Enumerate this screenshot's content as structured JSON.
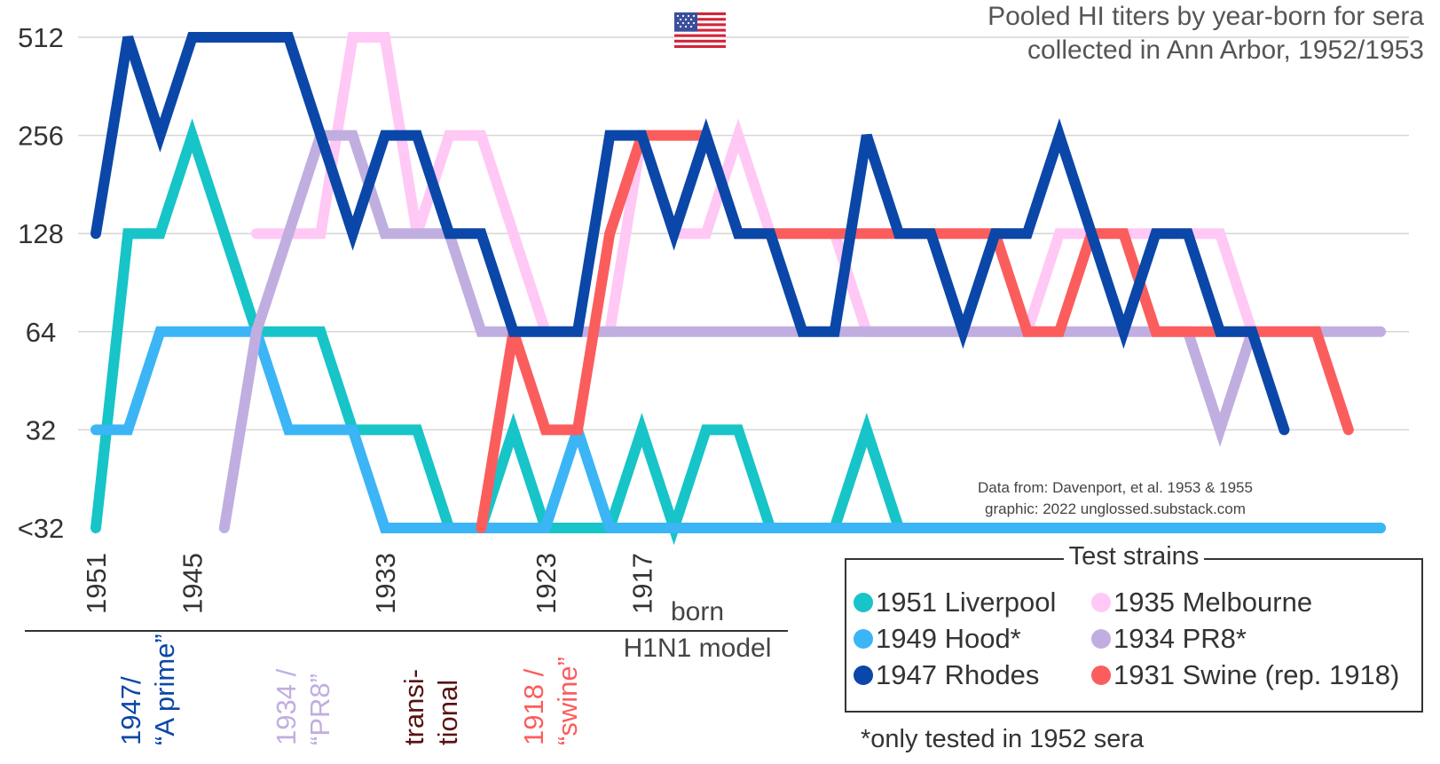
{
  "title_lines": [
    "Pooled HI titers by year-born for sera",
    "collected in Ann Arbor, 1952/1953"
  ],
  "flag": {
    "name": "us-flag-icon",
    "symbol": "🇺🇸"
  },
  "credit_lines": [
    "Data from: Davenport, et al. 1953 & 1955",
    "graphic: 2022 unglossed.substack.com"
  ],
  "legend": {
    "title": "Test strains",
    "items": [
      {
        "label": "1951 Liverpool",
        "color": "#17c4c8"
      },
      {
        "label": "1949 Hood*",
        "color": "#3bb5f5"
      },
      {
        "label": "1947 Rhodes",
        "color": "#0a47a8"
      },
      {
        "label": "1935 Melbourne",
        "color": "#ffc8f5"
      },
      {
        "label": "1934 PR8*",
        "color": "#c1aee0"
      },
      {
        "label": "1931 Swine (rep. 1918)",
        "color": "#fb5d5d"
      }
    ]
  },
  "note": "*only tested in 1952 sera",
  "born_label": "born",
  "model_label": "H1N1 model",
  "model_groups": [
    {
      "lines": [
        "1947/",
        "“A prime”"
      ],
      "color": "#0a47a8"
    },
    {
      "lines": [
        "1934 /",
        "“PR8”"
      ],
      "color": "#c1aee0"
    },
    {
      "lines": [
        "transi-",
        "tional"
      ],
      "color": "#5a1212"
    },
    {
      "lines": [
        "1918 /",
        "“swine”"
      ],
      "color": "#fb5d5d"
    }
  ],
  "chart_data": {
    "type": "line",
    "title": "Pooled HI titers by year-born for sera collected in Ann Arbor, 1952/1953",
    "xlabel": "born",
    "ylabel": "",
    "x_ticks": [
      "1951",
      "1945",
      "1933",
      "1923",
      "1917"
    ],
    "x_years": [
      1951,
      1949,
      1947,
      1945,
      1943,
      1941,
      1939,
      1937,
      1935,
      1933,
      1931,
      1929,
      1927,
      1925,
      1923,
      1921,
      1919,
      1917,
      1915,
      1913,
      1911,
      1909,
      1907,
      1905,
      1903,
      1901,
      1899,
      1897,
      1895,
      1893,
      1891,
      1889,
      1887,
      1885,
      1883,
      1881,
      1879,
      1877,
      1875,
      1873,
      1871
    ],
    "y_ticks": [
      "<32",
      "32",
      "64",
      "128",
      "256",
      "512"
    ],
    "y_note": "y values are log2 steps: 0 = <32, 1 = 32, 2 = 64, 3 = 128, 4 = 256, 5 = 512",
    "series": [
      {
        "name": "1951 Liverpool",
        "values": [
          0,
          3,
          3,
          4,
          3,
          2,
          2,
          2,
          1,
          1,
          1,
          0,
          0,
          1,
          0,
          0,
          0,
          1,
          0,
          1,
          1,
          0,
          0,
          0,
          1,
          0,
          0,
          0,
          0,
          0,
          0,
          0,
          0,
          0,
          0,
          0,
          0,
          0,
          0,
          0,
          0
        ]
      },
      {
        "name": "1949 Hood*",
        "values": [
          1,
          1,
          2,
          2,
          2,
          2,
          1,
          1,
          1,
          0,
          0,
          0,
          0,
          0,
          0,
          1,
          0,
          0,
          0,
          0,
          0,
          0,
          0,
          0,
          0,
          0,
          0,
          0,
          0,
          0,
          0,
          0,
          0,
          0,
          0,
          0,
          0,
          0,
          0,
          0,
          0
        ]
      },
      {
        "name": "1935 Melbourne",
        "values": [
          null,
          null,
          null,
          null,
          null,
          3,
          3,
          3,
          5,
          5,
          3,
          4,
          4,
          3,
          2,
          2,
          2,
          4,
          3,
          3,
          4,
          3,
          3,
          3,
          2,
          2,
          2,
          2,
          2,
          2,
          3,
          3,
          3,
          3,
          3,
          3,
          2,
          1,
          null,
          null,
          null
        ]
      },
      {
        "name": "1934 PR8*",
        "values": [
          null,
          null,
          null,
          null,
          0,
          2,
          3,
          4,
          4,
          3,
          3,
          3,
          2,
          2,
          2,
          2,
          2,
          2,
          2,
          2,
          2,
          2,
          2,
          2,
          2,
          2,
          2,
          2,
          2,
          2,
          2,
          2,
          2,
          2,
          2,
          1,
          2,
          2,
          2,
          2,
          2
        ]
      },
      {
        "name": "1931 Swine (rep. 1918)",
        "values": [
          null,
          null,
          null,
          null,
          null,
          null,
          null,
          null,
          null,
          null,
          null,
          null,
          0,
          2,
          1,
          1,
          3,
          4,
          4,
          4,
          3,
          3,
          3,
          3,
          3,
          3,
          3,
          3,
          3,
          2,
          2,
          3,
          3,
          2,
          2,
          2,
          2,
          2,
          2,
          1,
          null
        ]
      },
      {
        "name": "1947 Rhodes",
        "values": [
          3,
          5,
          4,
          5,
          5,
          5,
          5,
          4,
          3,
          4,
          4,
          3,
          3,
          2,
          2,
          2,
          4,
          4,
          3,
          4,
          3,
          3,
          2,
          2,
          4,
          3,
          3,
          2,
          3,
          3,
          4,
          3,
          2,
          3,
          3,
          2,
          2,
          1,
          null,
          null,
          null
        ]
      }
    ],
    "ylim": [
      0,
      5
    ],
    "grid": true,
    "legend_position": "bottom-right"
  }
}
